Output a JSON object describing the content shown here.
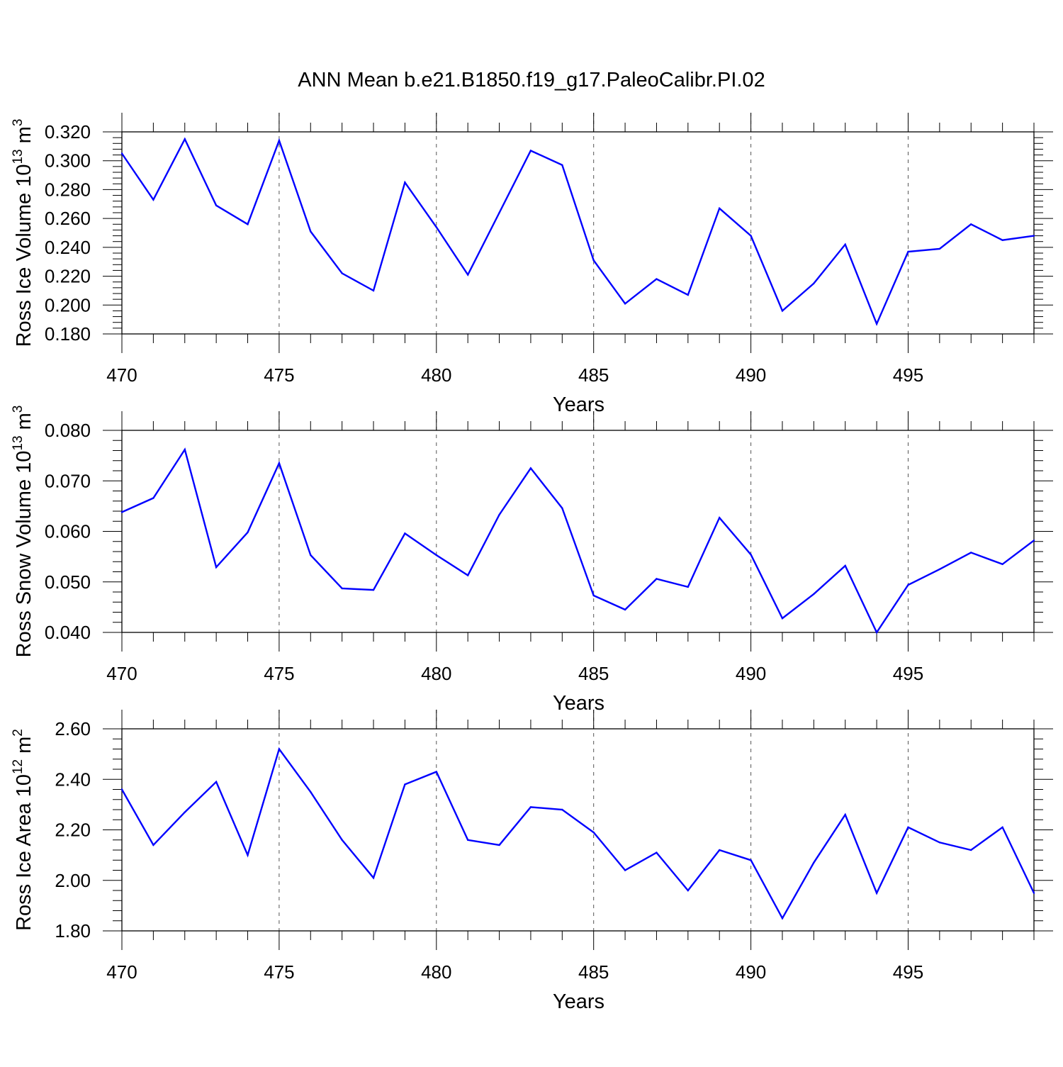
{
  "title": "ANN Mean b.e21.B1850.f19_g17.PaleoCalibr.PI.02",
  "line_color": "#0000ff",
  "chart_data": [
    {
      "type": "line",
      "ylabel": {
        "base": "Ross Ice Volume 10",
        "exp": "13",
        "unit": " m",
        "unit_exp": "3"
      },
      "xlabel": "Years",
      "xlim": [
        470,
        499
      ],
      "ylim": [
        0.18,
        0.32
      ],
      "xticks": [
        "470",
        "475",
        "480",
        "485",
        "490",
        "495"
      ],
      "yticks": [
        "0.180",
        "0.200",
        "0.220",
        "0.240",
        "0.260",
        "0.280",
        "0.300",
        "0.320"
      ],
      "x": [
        470,
        471,
        472,
        473,
        474,
        475,
        476,
        477,
        478,
        479,
        480,
        481,
        482,
        483,
        484,
        485,
        486,
        487,
        488,
        489,
        490,
        491,
        492,
        493,
        494,
        495,
        496,
        497,
        498,
        499
      ],
      "series": [
        {
          "values": [
            0.305,
            0.273,
            0.315,
            0.269,
            0.256,
            0.314,
            0.251,
            0.222,
            0.21,
            0.285,
            0.254,
            0.221,
            0.264,
            0.307,
            0.297,
            0.231,
            0.201,
            0.218,
            0.207,
            0.267,
            0.248,
            0.196,
            0.215,
            0.242,
            0.187,
            0.237,
            0.239,
            0.256,
            0.245,
            0.248
          ]
        }
      ]
    },
    {
      "type": "line",
      "ylabel": {
        "base": "Ross Snow Volume 10",
        "exp": "13",
        "unit": " m",
        "unit_exp": "3"
      },
      "xlabel": "Years",
      "xlim": [
        470,
        499
      ],
      "ylim": [
        0.04,
        0.08
      ],
      "xticks": [
        "470",
        "475",
        "480",
        "485",
        "490",
        "495"
      ],
      "yticks": [
        "0.040",
        "0.050",
        "0.060",
        "0.070",
        "0.080"
      ],
      "x": [
        470,
        471,
        472,
        473,
        474,
        475,
        476,
        477,
        478,
        479,
        480,
        481,
        482,
        483,
        484,
        485,
        486,
        487,
        488,
        489,
        490,
        491,
        492,
        493,
        494,
        495,
        496,
        497,
        498,
        499
      ],
      "series": [
        {
          "values": [
            0.0638,
            0.0666,
            0.0762,
            0.0529,
            0.0598,
            0.0735,
            0.0553,
            0.0487,
            0.0484,
            0.0596,
            0.0553,
            0.0513,
            0.0633,
            0.0725,
            0.0646,
            0.0473,
            0.0445,
            0.0506,
            0.049,
            0.0627,
            0.0554,
            0.0428,
            0.0476,
            0.0532,
            0.04,
            0.0494,
            0.0525,
            0.0558,
            0.0535,
            0.0582
          ]
        }
      ]
    },
    {
      "type": "line",
      "ylabel": {
        "base": "Ross Ice Area 10",
        "exp": "12",
        "unit": " m",
        "unit_exp": "2"
      },
      "xlabel": "Years",
      "xlim": [
        470,
        499
      ],
      "ylim": [
        1.8,
        2.6
      ],
      "xticks": [
        "470",
        "475",
        "480",
        "485",
        "490",
        "495"
      ],
      "yticks": [
        "1.80",
        "2.00",
        "2.20",
        "2.40",
        "2.60"
      ],
      "x": [
        470,
        471,
        472,
        473,
        474,
        475,
        476,
        477,
        478,
        479,
        480,
        481,
        482,
        483,
        484,
        485,
        486,
        487,
        488,
        489,
        490,
        491,
        492,
        493,
        494,
        495,
        496,
        497,
        498,
        499
      ],
      "series": [
        {
          "values": [
            2.36,
            2.14,
            2.27,
            2.39,
            2.1,
            2.52,
            2.35,
            2.16,
            2.01,
            2.38,
            2.43,
            2.16,
            2.14,
            2.29,
            2.28,
            2.19,
            2.04,
            2.11,
            1.96,
            2.12,
            2.08,
            1.85,
            2.07,
            2.26,
            1.95,
            2.21,
            2.15,
            2.12,
            2.21,
            1.95
          ]
        }
      ]
    }
  ]
}
